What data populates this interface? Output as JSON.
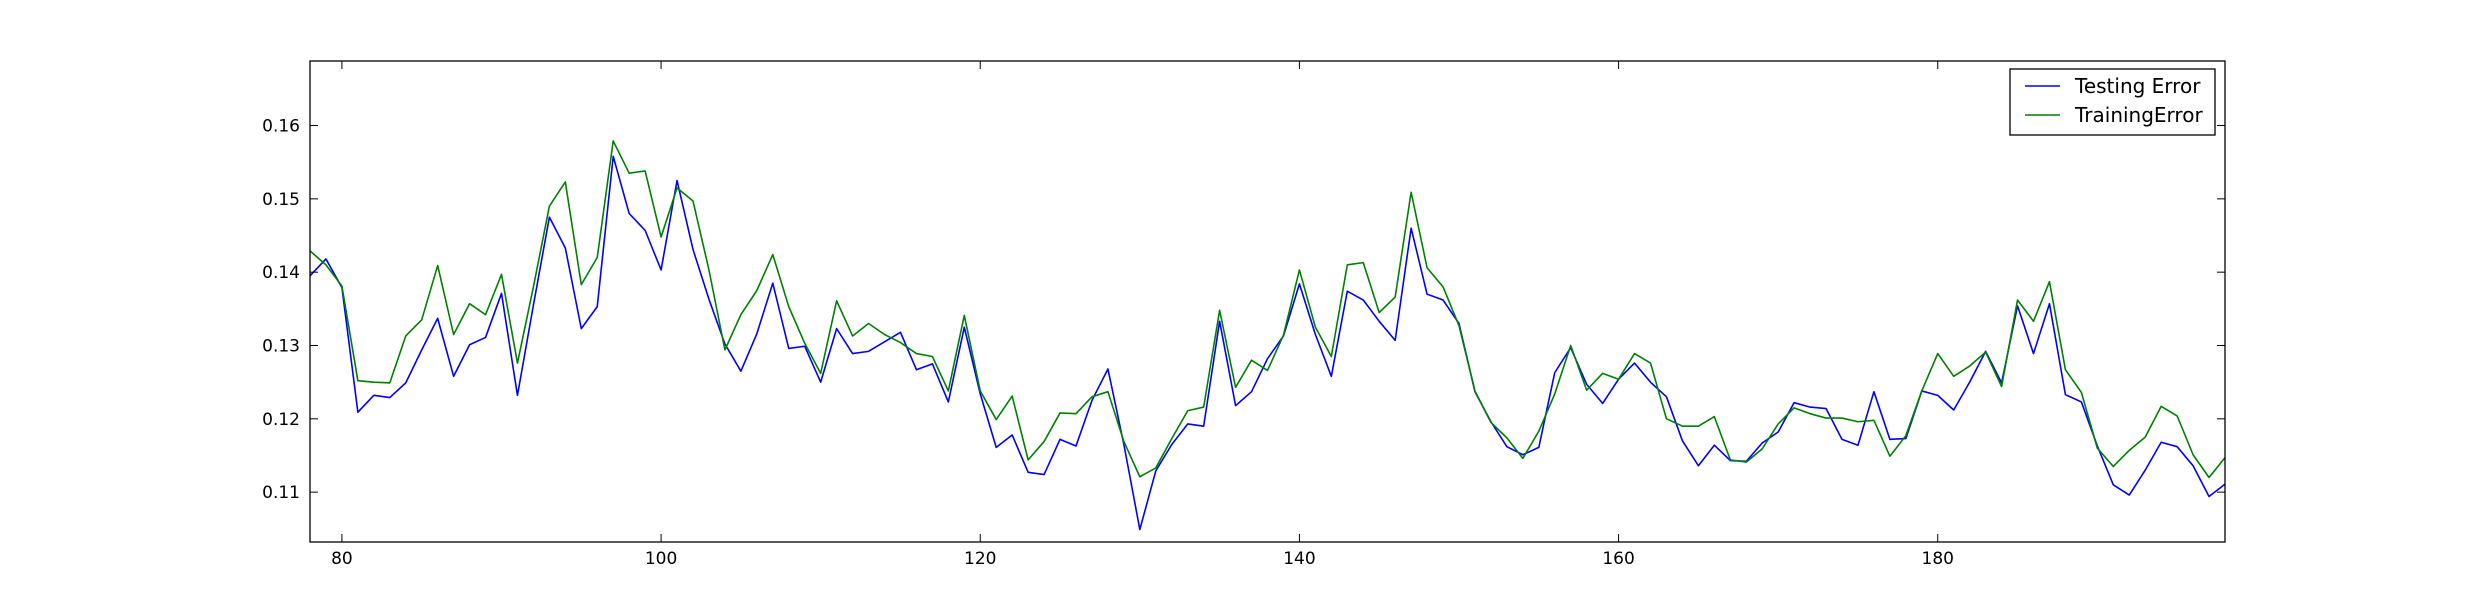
{
  "chart_data": {
    "type": "line",
    "title": "",
    "xlabel": "",
    "ylabel": "",
    "xlim": [
      78,
      198
    ],
    "ylim": [
      0.1032,
      0.1688
    ],
    "xticks": [
      80,
      100,
      120,
      140,
      160,
      180
    ],
    "yticks": [
      0.11,
      0.12,
      0.13,
      0.14,
      0.15,
      0.16
    ],
    "ytick_labels": [
      "0.11",
      "0.12",
      "0.13",
      "0.14",
      "0.15",
      "0.16"
    ],
    "grid": false,
    "legend_position": "top-right",
    "x_start": 78,
    "series": [
      {
        "name": "Testing Error",
        "color": "#0000ff",
        "values": [
          0.1395,
          0.1418,
          0.1379,
          0.1209,
          0.1232,
          0.1229,
          0.1249,
          0.1294,
          0.1337,
          0.1258,
          0.1301,
          0.1311,
          0.1371,
          0.1232,
          0.1355,
          0.1475,
          0.1433,
          0.1323,
          0.1353,
          0.1558,
          0.148,
          0.1457,
          0.1403,
          0.1525,
          0.1431,
          0.1363,
          0.1302,
          0.1265,
          0.1316,
          0.1385,
          0.1296,
          0.1299,
          0.125,
          0.1323,
          0.1289,
          0.1292,
          0.1305,
          0.1318,
          0.1267,
          0.1275,
          0.1223,
          0.1325,
          0.1234,
          0.1161,
          0.1178,
          0.1127,
          0.1124,
          0.1172,
          0.1163,
          0.1225,
          0.1268,
          0.1165,
          0.1049,
          0.1129,
          0.1165,
          0.1193,
          0.119,
          0.1333,
          0.1218,
          0.1237,
          0.1282,
          0.1313,
          0.1384,
          0.1315,
          0.1258,
          0.1374,
          0.1362,
          0.1333,
          0.1307,
          0.146,
          0.137,
          0.1362,
          0.133,
          0.1237,
          0.1196,
          0.1162,
          0.1151,
          0.1161,
          0.1263,
          0.1297,
          0.1247,
          0.1221,
          0.1254,
          0.1276,
          0.125,
          0.123,
          0.117,
          0.1136,
          0.1164,
          0.1143,
          0.1142,
          0.1167,
          0.1182,
          0.1222,
          0.1216,
          0.1214,
          0.1172,
          0.1164,
          0.1237,
          0.1172,
          0.1173,
          0.1238,
          0.1232,
          0.1212,
          0.125,
          0.1292,
          0.1249,
          0.1354,
          0.1289,
          0.1357,
          0.1233,
          0.1223,
          0.1163,
          0.111,
          0.1096,
          0.113,
          0.1168,
          0.1162,
          0.1136,
          0.1094,
          0.1111
        ]
      },
      {
        "name": "TrainingError",
        "color": "#008000",
        "values": [
          0.1429,
          0.141,
          0.1381,
          0.1252,
          0.125,
          0.1249,
          0.1313,
          0.1335,
          0.1409,
          0.1315,
          0.1357,
          0.1342,
          0.1397,
          0.1276,
          0.138,
          0.149,
          0.1523,
          0.1383,
          0.142,
          0.1579,
          0.1535,
          0.1538,
          0.1448,
          0.1515,
          0.1497,
          0.1403,
          0.1294,
          0.1342,
          0.1375,
          0.1424,
          0.1353,
          0.1303,
          0.1262,
          0.1361,
          0.1313,
          0.133,
          0.1315,
          0.1304,
          0.1289,
          0.1285,
          0.1238,
          0.1341,
          0.1238,
          0.1199,
          0.1231,
          0.1144,
          0.1169,
          0.1208,
          0.1207,
          0.123,
          0.1237,
          0.1169,
          0.1121,
          0.1133,
          0.1173,
          0.1211,
          0.1216,
          0.1348,
          0.1243,
          0.128,
          0.1266,
          0.1314,
          0.1403,
          0.1325,
          0.1285,
          0.141,
          0.1413,
          0.1345,
          0.1366,
          0.1509,
          0.1406,
          0.138,
          0.1327,
          0.1238,
          0.1195,
          0.1174,
          0.1146,
          0.1183,
          0.1234,
          0.13,
          0.1239,
          0.1262,
          0.1254,
          0.1289,
          0.1276,
          0.12,
          0.119,
          0.119,
          0.1203,
          0.1144,
          0.1141,
          0.1159,
          0.1193,
          0.1215,
          0.1207,
          0.1201,
          0.1201,
          0.1196,
          0.1198,
          0.1149,
          0.1177,
          0.1238,
          0.1289,
          0.1258,
          0.1272,
          0.1291,
          0.1244,
          0.1362,
          0.1333,
          0.1387,
          0.1267,
          0.1236,
          0.116,
          0.1135,
          0.1157,
          0.1175,
          0.1217,
          0.1204,
          0.1151,
          0.112,
          0.1147
        ]
      }
    ]
  }
}
